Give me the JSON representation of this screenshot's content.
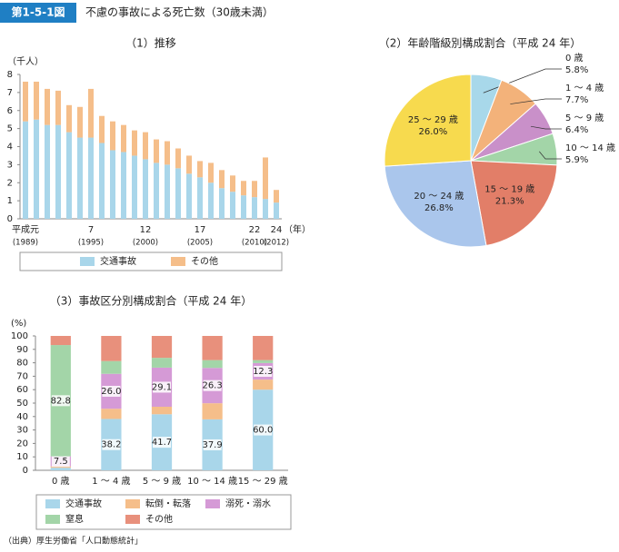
{
  "header": {
    "figure_no": "第1-5-1図",
    "title": "不慮の事故による死亡数（30歳未満）"
  },
  "chart_data": [
    {
      "type": "bar",
      "stacked": true,
      "title": "（1）推移",
      "y_label": "（千人）",
      "x_label": "（年）",
      "categories": [
        "平成元",
        null,
        null,
        null,
        null,
        null,
        "7",
        null,
        null,
        null,
        null,
        "12",
        null,
        null,
        null,
        null,
        "17",
        null,
        null,
        null,
        null,
        "22",
        null,
        "24"
      ],
      "category_sublabels": [
        "(1989)",
        null,
        null,
        null,
        null,
        null,
        "(1995)",
        null,
        null,
        null,
        null,
        "(2000)",
        null,
        null,
        null,
        null,
        "(2005)",
        null,
        null,
        null,
        null,
        "(2010)",
        null,
        "(2012)"
      ],
      "series": [
        {
          "name": "交通事故",
          "color": "#a9d6ea",
          "values": [
            5.4,
            5.5,
            5.2,
            5.2,
            4.8,
            4.5,
            4.5,
            4.2,
            3.8,
            3.7,
            3.5,
            3.3,
            3.1,
            3.0,
            2.8,
            2.5,
            2.3,
            2.0,
            1.7,
            1.5,
            1.3,
            1.2,
            1.1,
            0.9
          ]
        },
        {
          "name": "その他",
          "color": "#f5be8a",
          "values": [
            2.2,
            2.1,
            2.0,
            1.9,
            1.5,
            1.7,
            2.7,
            1.5,
            1.6,
            1.5,
            1.4,
            1.5,
            1.3,
            1.3,
            1.1,
            1.0,
            0.9,
            1.1,
            1.0,
            0.9,
            0.8,
            0.9,
            2.3,
            0.7
          ]
        }
      ],
      "ylim": [
        0,
        8
      ],
      "yticks": [
        0,
        1,
        2,
        3,
        4,
        5,
        6,
        7,
        8
      ],
      "grid": false,
      "legend": "bottom"
    },
    {
      "type": "pie",
      "title": "（2）年齢階級別構成割合（平成 24 年）",
      "categories": [
        "0 歳",
        "1 ～ 4 歳",
        "5 ～ 9 歳",
        "10 ～ 14 歳",
        "15 ～ 19 歳",
        "20 ～ 24 歳",
        "25 ～ 29 歳"
      ],
      "values": [
        5.8,
        7.7,
        6.4,
        5.9,
        21.3,
        26.8,
        26.0
      ],
      "value_labels": [
        "5.8%",
        "7.7%",
        "6.4%",
        "5.9%",
        "21.3%",
        "26.8%",
        "26.0%"
      ],
      "colors": [
        "#a8d8ea",
        "#f3b27a",
        "#c990c9",
        "#a3d5a8",
        "#e27e68",
        "#aac6ec",
        "#f7da4e"
      ]
    },
    {
      "type": "bar",
      "stacked": true,
      "title": "（3）事故区分別構成割合（平成 24 年）",
      "y_label": "(%)",
      "categories": [
        "0 歳",
        "1 ～ 4 歳",
        "5 ～ 9 歳",
        "10 ～ 14 歳",
        "15 ～ 29 歳"
      ],
      "series": [
        {
          "name": "交通事故",
          "color": "#a9d6ea",
          "values": [
            1.9,
            38.2,
            41.7,
            37.9,
            60.0
          ],
          "value_labels": [
            null,
            "38.2",
            "41.7",
            "37.9",
            "60.0"
          ]
        },
        {
          "name": "転倒・転落",
          "color": "#f5be8a",
          "values": [
            1.0,
            7.6,
            5.6,
            12.0,
            7.5
          ],
          "value_labels": [
            null,
            null,
            null,
            null,
            null
          ]
        },
        {
          "name": "溺死・溺水",
          "color": "#d59ad6",
          "values": [
            7.5,
            26.0,
            29.1,
            26.3,
            12.3
          ],
          "value_labels": [
            "7.5",
            "26.0",
            "29.1",
            "26.3",
            "12.3"
          ]
        },
        {
          "name": "窒息",
          "color": "#a3d5a8",
          "values": [
            82.8,
            9.5,
            7.3,
            5.8,
            2.2
          ],
          "value_labels": [
            "82.8",
            null,
            null,
            null,
            null
          ]
        },
        {
          "name": "その他",
          "color": "#e8907c",
          "values": [
            6.8,
            18.7,
            16.3,
            18.0,
            18.0
          ],
          "value_labels": [
            null,
            null,
            null,
            null,
            null
          ]
        }
      ],
      "ylim": [
        0,
        100
      ],
      "yticks": [
        0,
        10,
        20,
        30,
        40,
        50,
        60,
        70,
        80,
        90,
        100
      ],
      "grid": false,
      "legend": "bottom"
    }
  ],
  "source": "（出典）厚生労働省「人口動態統計」"
}
